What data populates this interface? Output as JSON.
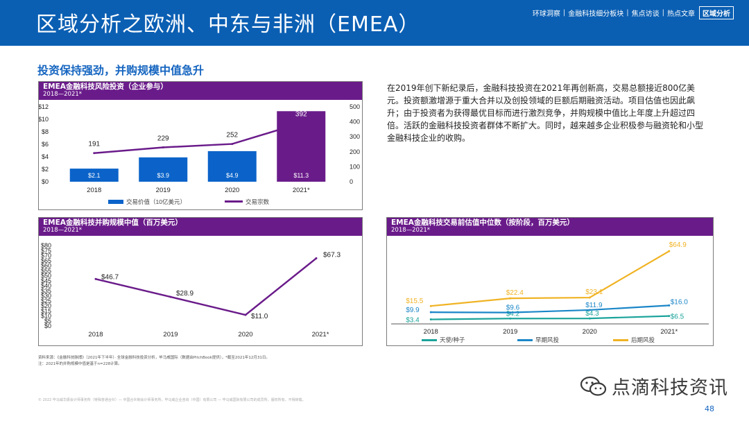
{
  "header": {
    "title": "区域分析之欧洲、中东与非洲（EMEA）",
    "nav": [
      "环球洞察",
      "金融科技细分板块",
      "焦点访谈",
      "热点文章",
      "区域分析"
    ],
    "nav_active_index": 4,
    "bg_color": "#0b5fb3"
  },
  "section_title": "投资保持强劲，并购规模中值急升",
  "body_text": "在2019年创下新纪录后，金融科技投资在2021年再创新高，交易总额接近800亿美元。投资额激增源于重大合并以及创投领域的巨额后期融资活动。项目估值也因此飙升；由于投资者为获得最优目标而进行激烈竞争，并购规模中值比上年度上升超过四倍。活跃的金融科技投资者群体不断扩大。同时，越来越多企业积极参与融资轮和小型金融科技企业的收购。",
  "source_lines": [
    "资料来源：《金融科技脉搏》（2021年下半年）· 全球金融科技投资分析，毕马威国际（数据由PitchBook提供），*截至2021年12月31日。",
    "注：2021年的并购规模中值是基于n=228计算。"
  ],
  "footer_copy": "© 2022 毕马威华振会计师事务所（特殊普通合伙）— 中国合伙制会计师事务所，毕马威企业咨询（中国）有限公司 — 毕马威国际有限公司的成员所，版权所有，不得转载。",
  "watermark": {
    "text": "点滴科技资讯",
    "icon": "wechat-icon"
  },
  "page_number": "48",
  "chart_data": [
    {
      "type": "bar",
      "title": "EMEA金融科技风险投资（企业参与）",
      "subtitle": "2018—2021*",
      "categories": [
        "2018",
        "2019",
        "2020",
        "2021*"
      ],
      "y_left_ticks": [
        "$0",
        "$2",
        "$4",
        "$6",
        "$8",
        "$10",
        "$12"
      ],
      "y_left_range": [
        0,
        12
      ],
      "y_right_ticks": [
        "0",
        "100",
        "200",
        "300",
        "400",
        "500"
      ],
      "y_right_range": [
        0,
        500
      ],
      "bar_series": {
        "name": "交易价值（10亿美元）",
        "values": [
          2.1,
          3.9,
          4.9,
          11.3
        ],
        "labels": [
          "$2.1",
          "$3.9",
          "$4.9",
          "$11.3"
        ],
        "colors": [
          "#0b63c9",
          "#0b63c9",
          "#0b63c9",
          "#6a1b8a"
        ]
      },
      "line_series": {
        "name": "交易宗数",
        "values": [
          191,
          229,
          252,
          392
        ],
        "labels": [
          "191",
          "229",
          "252",
          "392"
        ],
        "color": "#6a1b8a"
      },
      "legend_position": "bottom",
      "legend_colors": [
        "#0b63c9",
        "#6a1b8a"
      ]
    },
    {
      "type": "line",
      "title": "EMEA金融科技并购规模中值（百万美元）",
      "subtitle": "2018—2021*",
      "categories": [
        "2018",
        "2019",
        "2020",
        "2021*"
      ],
      "y_ticks": [
        "$0",
        "$5",
        "$10",
        "$15",
        "$20",
        "$25",
        "$30",
        "$35",
        "$40",
        "$45",
        "$50",
        "$55",
        "$60",
        "$65",
        "$70",
        "$75",
        "$80"
      ],
      "y_range": [
        0,
        80
      ],
      "series": [
        {
          "values": [
            46.7,
            28.9,
            11.0,
            67.3
          ],
          "labels": [
            "$46.7",
            "$28.9",
            "$11.0",
            "$67.3"
          ],
          "color": "#6a1b8a"
        }
      ]
    },
    {
      "type": "line",
      "title": "EMEA金融科技交易前估值中位数（按阶段，百万美元）",
      "subtitle": "2018—2021*",
      "categories": [
        "2018",
        "2019",
        "2020",
        "2021*"
      ],
      "y_range": [
        0,
        70
      ],
      "legend_position": "bottom",
      "series": [
        {
          "name": "天使/种子",
          "values": [
            3.4,
            4.2,
            4.3,
            6.5
          ],
          "labels": [
            "$3.4",
            "$4.2",
            "$4.3",
            "$6.5"
          ],
          "color": "#1aa39a"
        },
        {
          "name": "早期风投",
          "values": [
            9.9,
            9.6,
            11.9,
            16.0
          ],
          "labels": [
            "$9.9",
            "$9.6",
            "$11.9",
            "$16.0"
          ],
          "color": "#1a86c8"
        },
        {
          "name": "后期风投",
          "values": [
            15.5,
            22.4,
            23.1,
            64.9
          ],
          "labels": [
            "$15.5",
            "$22.4",
            "$23.1",
            "$64.9"
          ],
          "color": "#f0b323"
        }
      ]
    }
  ]
}
